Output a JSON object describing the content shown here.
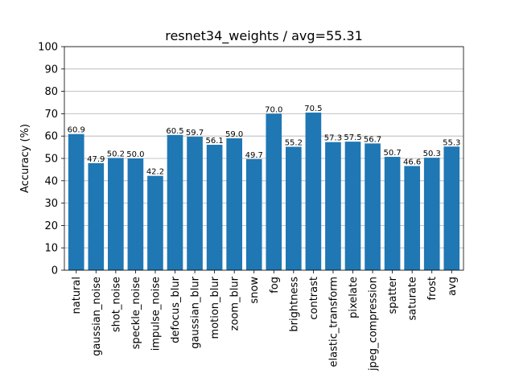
{
  "chart_data": {
    "type": "bar",
    "title": "resnet34_weights / avg=55.31",
    "xlabel": "",
    "ylabel": "Accuracy (%)",
    "ylim": [
      0,
      100
    ],
    "yticks": [
      0,
      10,
      20,
      30,
      40,
      50,
      60,
      70,
      80,
      90,
      100
    ],
    "grid": "y",
    "bar_color": "#1f77b4",
    "categories": [
      "natural",
      "gaussian_noise",
      "shot_noise",
      "speckle_noise",
      "impulse_noise",
      "defocus_blur",
      "gaussian_blur",
      "motion_blur",
      "zoom_blur",
      "snow",
      "fog",
      "brightness",
      "contrast",
      "elastic_transform",
      "pixelate",
      "jpeg_compression",
      "spatter",
      "saturate",
      "frost",
      "avg"
    ],
    "values": [
      60.9,
      47.9,
      50.2,
      50.0,
      42.2,
      60.5,
      59.7,
      56.1,
      59.0,
      49.7,
      70.0,
      55.2,
      70.5,
      57.3,
      57.5,
      56.7,
      50.7,
      46.6,
      50.3,
      55.3
    ],
    "value_labels": [
      "60.9",
      "47.9",
      "50.2",
      "50.0",
      "42.2",
      "60.5",
      "59.7",
      "56.1",
      "59.0",
      "49.7",
      "70.0",
      "55.2",
      "70.5",
      "57.3",
      "57.5",
      "56.7",
      "50.7",
      "46.6",
      "50.3",
      "55.3"
    ]
  }
}
